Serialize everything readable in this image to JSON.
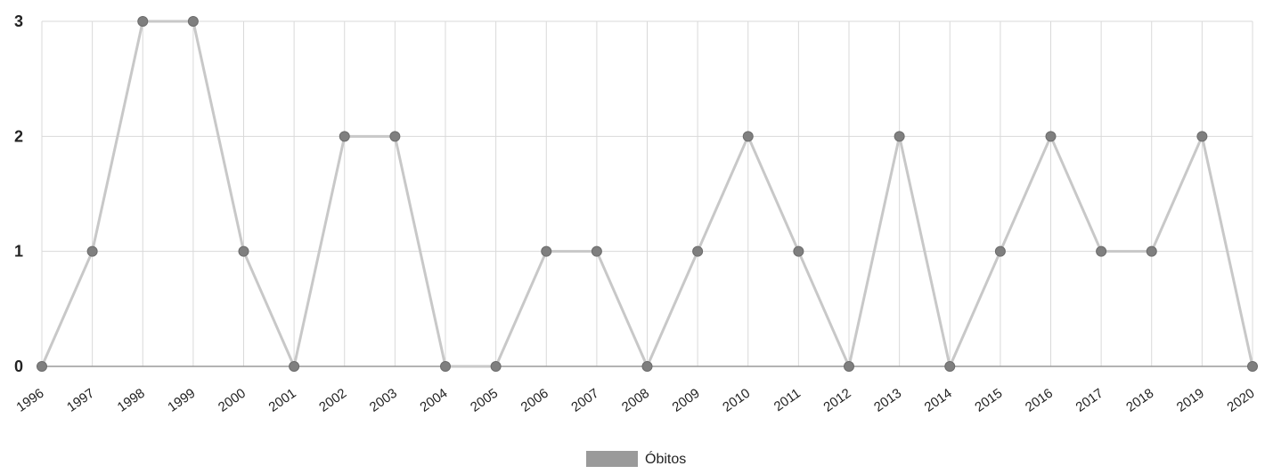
{
  "chart_data": {
    "type": "line",
    "title": "",
    "xlabel": "",
    "ylabel": "",
    "categories": [
      "1996",
      "1997",
      "1998",
      "1999",
      "2000",
      "2001",
      "2002",
      "2003",
      "2004",
      "2005",
      "2006",
      "2007",
      "2008",
      "2009",
      "2010",
      "2011",
      "2012",
      "2013",
      "2014",
      "2015",
      "2016",
      "2017",
      "2018",
      "2019",
      "2020"
    ],
    "series": [
      {
        "name": "Óbitos",
        "values": [
          0,
          1,
          3,
          3,
          1,
          0,
          2,
          2,
          0,
          0,
          1,
          1,
          0,
          1,
          2,
          1,
          0,
          2,
          0,
          1,
          2,
          1,
          1,
          2,
          0
        ]
      }
    ],
    "ylim": [
      0,
      3
    ],
    "yticks": [
      "0",
      "1",
      "2",
      "3"
    ],
    "grid": true,
    "legend_position": "bottom-center",
    "colors": {
      "line": "#c8c8c8",
      "point": "#7f7f7f",
      "legend": "#9a9a9a"
    }
  }
}
